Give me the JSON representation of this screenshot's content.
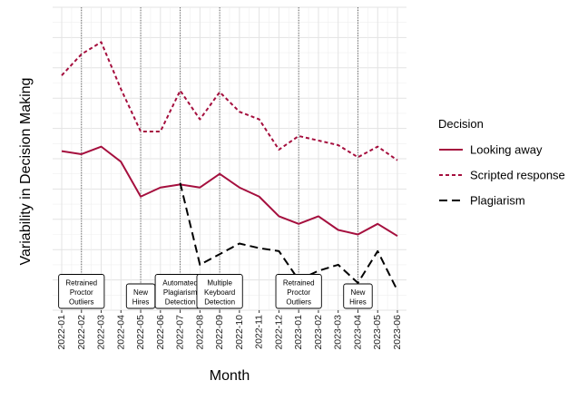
{
  "chart_data": {
    "type": "line",
    "xlabel": "Month",
    "ylabel": "Variability in Decision Making",
    "legend_title": "Decision",
    "legend_position": "right",
    "grid": true,
    "categories": [
      "2022-01",
      "2022-02",
      "2022-03",
      "2022-04",
      "2022-05",
      "2022-06",
      "2022-07",
      "2022-08",
      "2022-09",
      "2022-10",
      "2022-11",
      "2022-12",
      "2023-01",
      "2023-02",
      "2023-03",
      "2023-04",
      "2023-05",
      "2023-06"
    ],
    "ylim": [
      0,
      100
    ],
    "series": [
      {
        "name": "Looking away",
        "style": "solid",
        "color": "#A50F3E",
        "values": [
          52.5,
          51.5,
          54,
          49,
          37.5,
          40.5,
          41.5,
          40.5,
          45,
          40.5,
          37.5,
          31,
          28.5,
          31,
          26.5,
          25,
          28.5,
          24.5
        ]
      },
      {
        "name": "Scripted response",
        "style": "dotted",
        "color": "#A50F3E",
        "values": [
          77.5,
          84.5,
          88.5,
          73,
          59,
          59,
          72.5,
          63,
          72,
          65.5,
          63,
          53,
          57.5,
          56,
          54.5,
          50.5,
          54,
          49.5
        ]
      },
      {
        "name": "Plagiarism",
        "style": "dashed",
        "color": "#000000",
        "start_index": 6,
        "values": [
          null,
          null,
          null,
          null,
          null,
          null,
          42,
          15,
          18.5,
          22,
          20.5,
          19.5,
          10,
          13,
          15,
          9,
          19.5,
          6.5
        ]
      }
    ],
    "annotations": [
      {
        "category": "2022-02",
        "lines": [
          "Retrained",
          "Proctor",
          "Outliers"
        ]
      },
      {
        "category": "2022-05",
        "lines": [
          "New",
          "Hires"
        ]
      },
      {
        "category": "2022-07",
        "lines": [
          "Automated",
          "Plagiarism",
          "Detection"
        ]
      },
      {
        "category": "2022-09",
        "lines": [
          "Multiple",
          "Keyboard",
          "Detection"
        ]
      },
      {
        "category": "2023-01",
        "lines": [
          "Retrained",
          "Proctor",
          "Outliers"
        ]
      },
      {
        "category": "2023-04",
        "lines": [
          "New",
          "Hires"
        ]
      }
    ]
  }
}
